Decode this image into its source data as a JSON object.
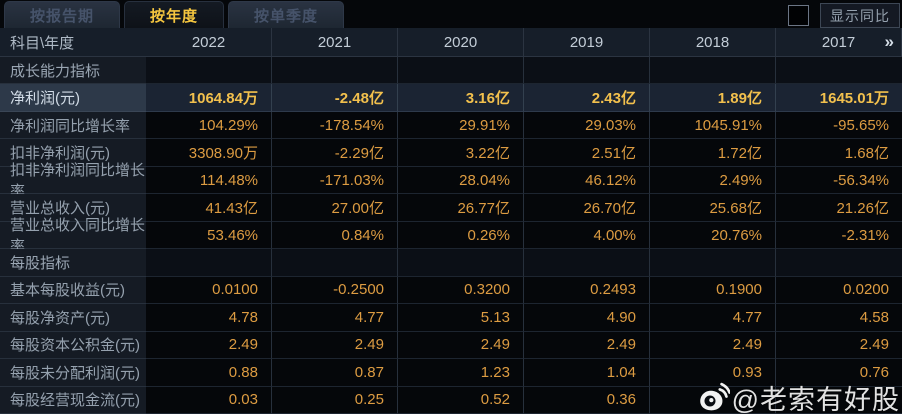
{
  "tabs": [
    {
      "label": "按报告期",
      "active": false
    },
    {
      "label": "按年度",
      "active": true
    },
    {
      "label": "按单季度",
      "active": false
    }
  ],
  "controls": {
    "show_yoy_checkbox_checked": false,
    "show_yoy_label": "显示同比"
  },
  "table": {
    "corner_label": "科目\\年度",
    "years": [
      "2022",
      "2021",
      "2020",
      "2019",
      "2018",
      "2017"
    ],
    "more_years_icon": "»",
    "rows": [
      {
        "type": "section",
        "label": "成长能力指标",
        "values": [
          "",
          "",
          "",
          "",
          "",
          ""
        ]
      },
      {
        "type": "data",
        "highlight": true,
        "label": "净利润(元)",
        "values": [
          "1064.84万",
          "-2.48亿",
          "3.16亿",
          "2.43亿",
          "1.89亿",
          "1645.01万"
        ]
      },
      {
        "type": "data",
        "label": "净利润同比增长率",
        "values": [
          "104.29%",
          "-178.54%",
          "29.91%",
          "29.03%",
          "1045.91%",
          "-95.65%"
        ]
      },
      {
        "type": "data",
        "label": "扣非净利润(元)",
        "values": [
          "3308.90万",
          "-2.29亿",
          "3.22亿",
          "2.51亿",
          "1.72亿",
          "1.68亿"
        ]
      },
      {
        "type": "data",
        "label": "扣非净利润同比增长率",
        "values": [
          "114.48%",
          "-171.03%",
          "28.04%",
          "46.12%",
          "2.49%",
          "-56.34%"
        ]
      },
      {
        "type": "data",
        "label": "营业总收入(元)",
        "values": [
          "41.43亿",
          "27.00亿",
          "26.77亿",
          "26.70亿",
          "25.68亿",
          "21.26亿"
        ]
      },
      {
        "type": "data",
        "label": "营业总收入同比增长率",
        "values": [
          "53.46%",
          "0.84%",
          "0.26%",
          "4.00%",
          "20.76%",
          "-2.31%"
        ]
      },
      {
        "type": "section",
        "label": "每股指标",
        "values": [
          "",
          "",
          "",
          "",
          "",
          ""
        ]
      },
      {
        "type": "data",
        "label": "基本每股收益(元)",
        "values": [
          "0.0100",
          "-0.2500",
          "0.3200",
          "0.2493",
          "0.1900",
          "0.0200"
        ]
      },
      {
        "type": "data",
        "label": "每股净资产(元)",
        "values": [
          "4.78",
          "4.77",
          "5.13",
          "4.90",
          "4.77",
          "4.58"
        ]
      },
      {
        "type": "data",
        "label": "每股资本公积金(元)",
        "values": [
          "2.49",
          "2.49",
          "2.49",
          "2.49",
          "2.49",
          "2.49"
        ]
      },
      {
        "type": "data",
        "label": "每股未分配利润(元)",
        "values": [
          "0.88",
          "0.87",
          "1.23",
          "1.04",
          "0.93",
          "0.76"
        ]
      },
      {
        "type": "data",
        "label": "每股经营现金流(元)",
        "values": [
          "0.03",
          "0.25",
          "0.52",
          "0.36",
          "",
          ""
        ]
      }
    ]
  },
  "watermark": {
    "icon": "weibo-icon",
    "text": "@老索有好股"
  },
  "colors": {
    "background": "#0a0d12",
    "active_tab_text": "#f5c63f",
    "value_text": "#dd9c42",
    "highlight_value_text": "#f2c04d",
    "header_bg": "#161e29",
    "highlight_row_bg": "#1b2433"
  }
}
